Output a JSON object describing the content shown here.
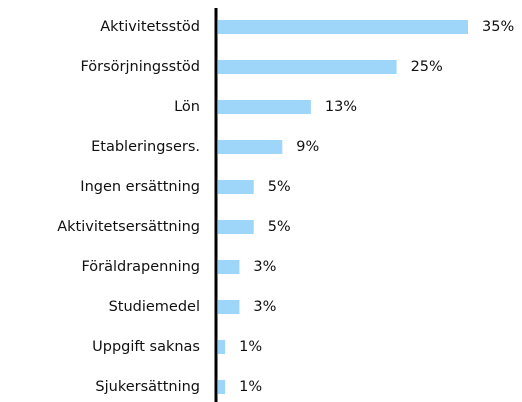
{
  "chart_data": {
    "type": "bar",
    "orientation": "horizontal",
    "categories": [
      "Aktivitetsstöd",
      "Försörjningsstöd",
      "Lön",
      "Etableringsers.",
      "Ingen ersättning",
      "Aktivitetsersättning",
      "Föräldrapenning",
      "Studiemedel",
      "Uppgift saknas",
      "Sjukersättning"
    ],
    "values": [
      35,
      25,
      13,
      9,
      5,
      5,
      3,
      3,
      1,
      1
    ],
    "value_labels": [
      "35%",
      "25%",
      "13%",
      "9%",
      "5%",
      "5%",
      "3%",
      "3%",
      "1%",
      "1%"
    ],
    "color": "#9dd6f8"
  }
}
